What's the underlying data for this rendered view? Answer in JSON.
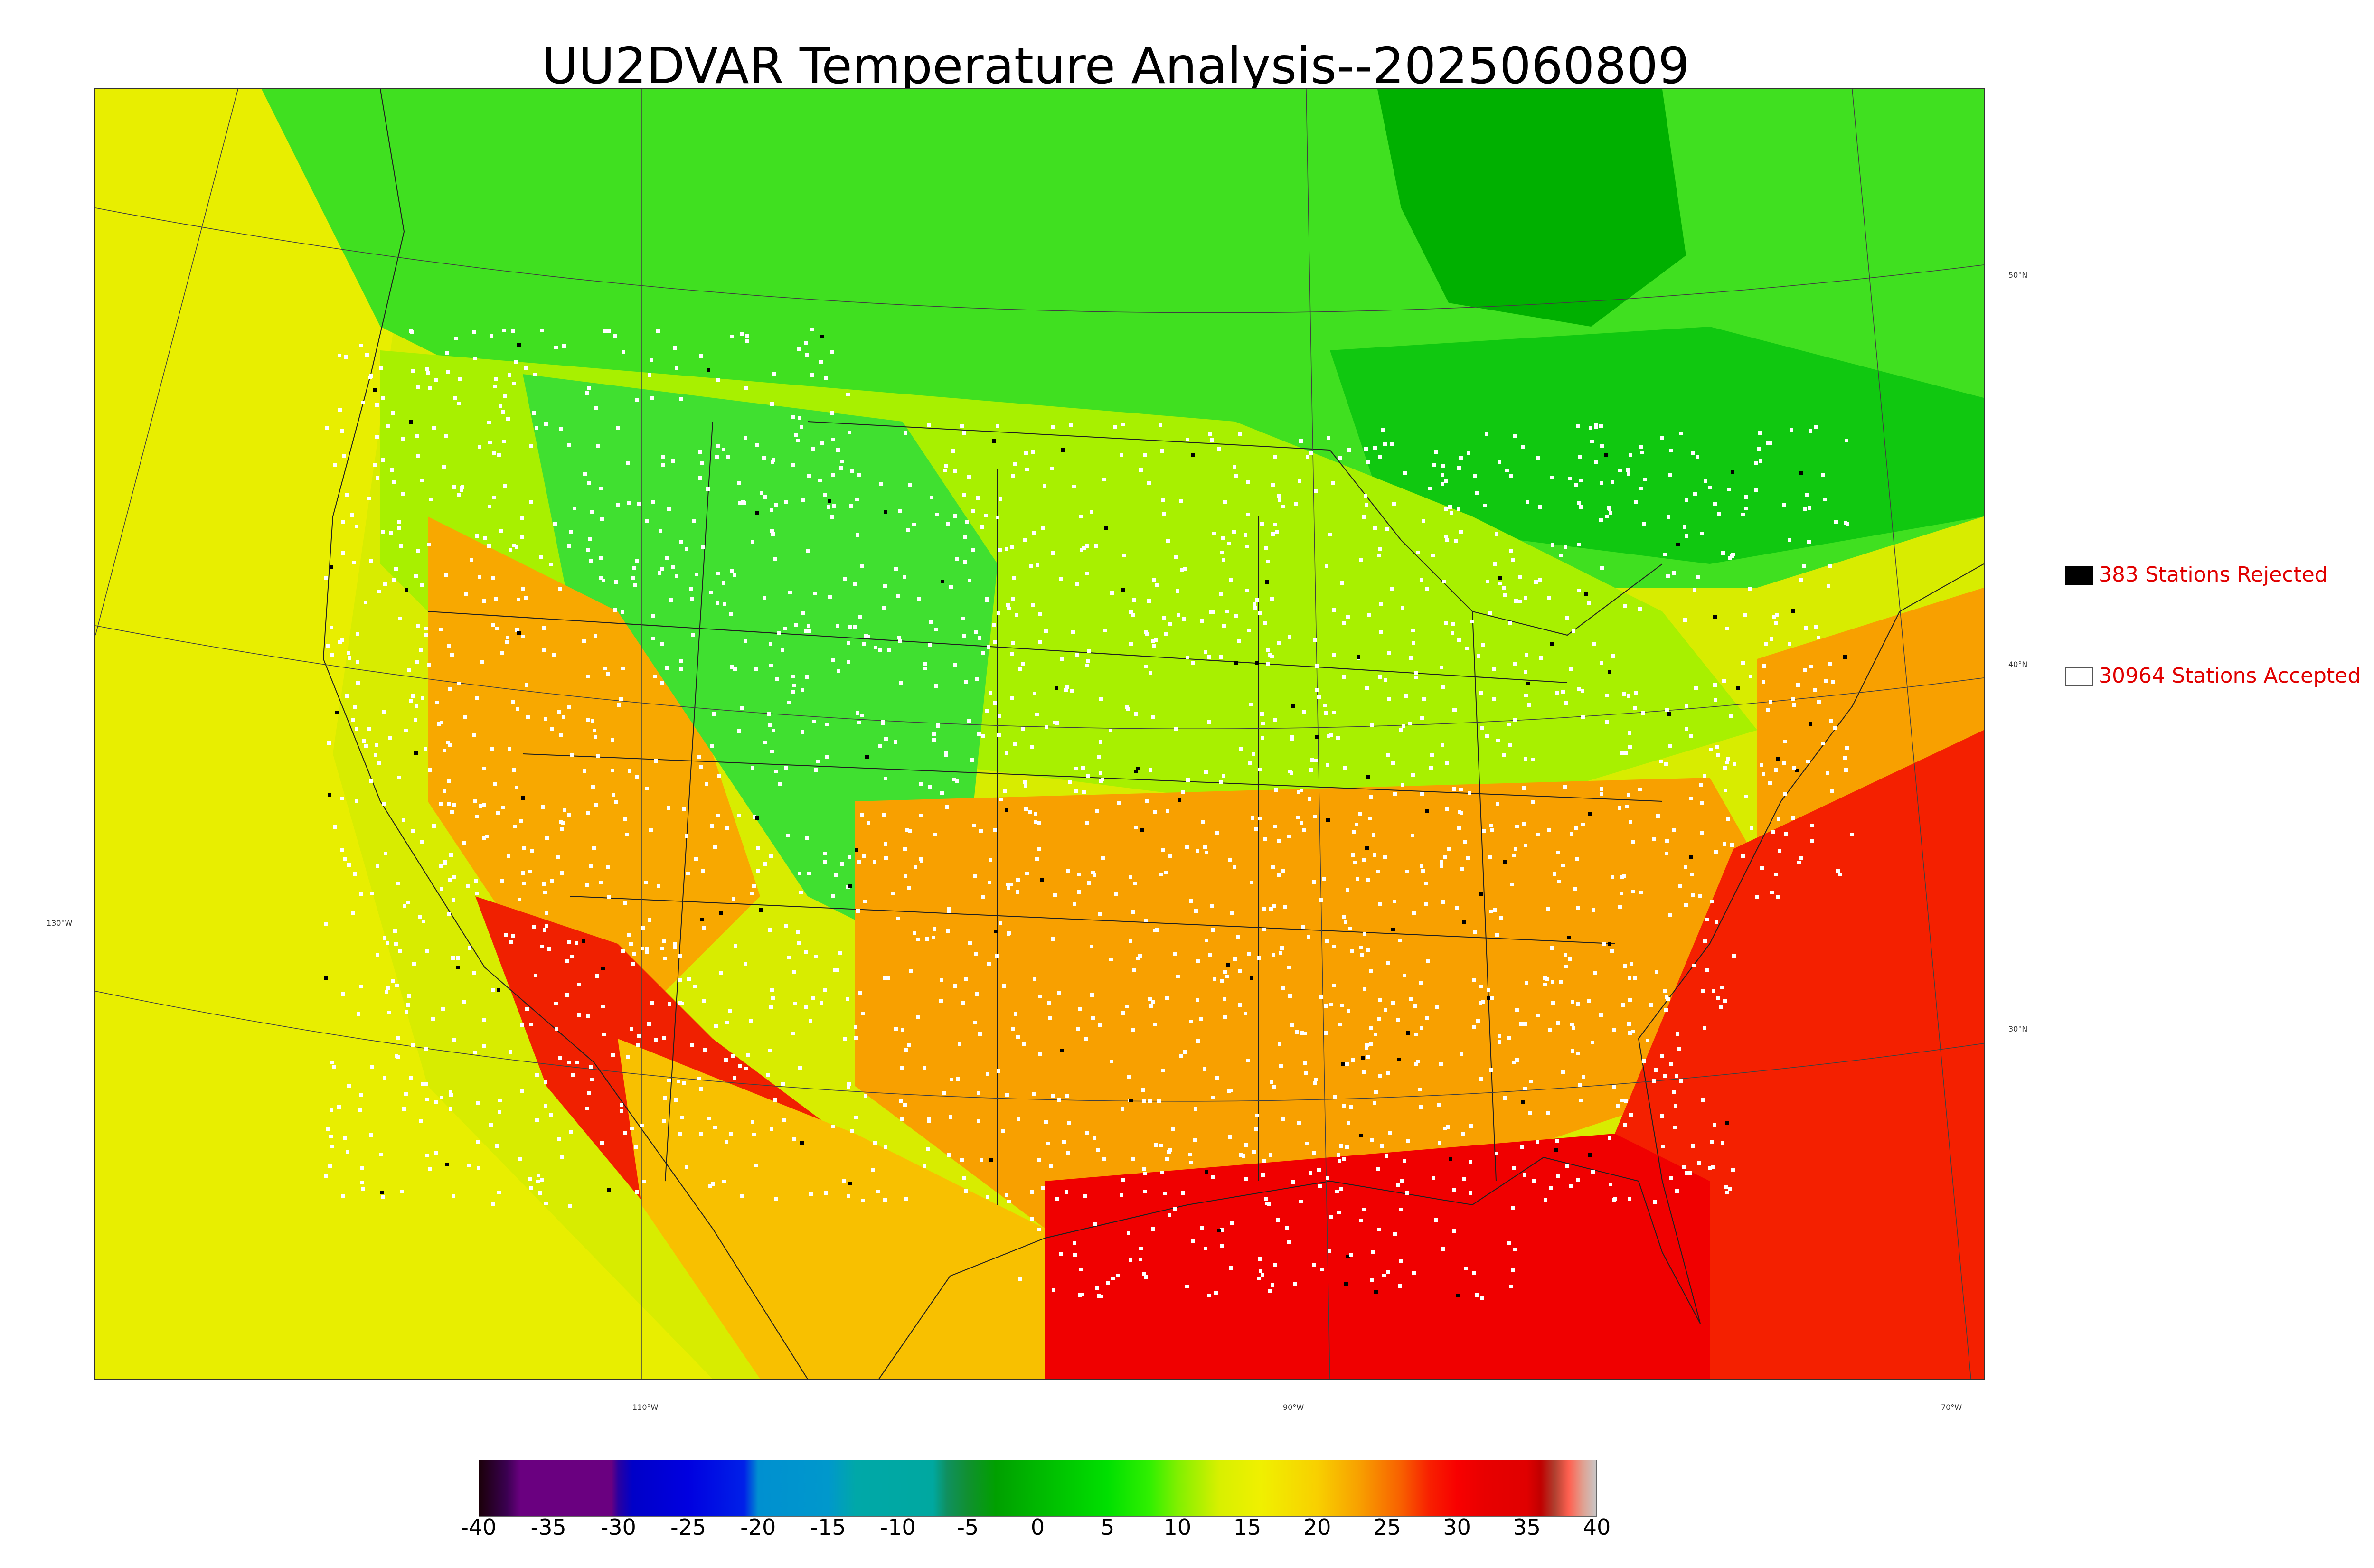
{
  "title": "UU2DVAR Temperature Analysis--2025060809",
  "legend": {
    "rejected": {
      "label": "383 Stations Rejected",
      "color": "#000000"
    },
    "accepted": {
      "label": "30964 Stations Accepted",
      "color": "#ffffff"
    }
  },
  "latitude_labels": [
    "50°N",
    "40°N",
    "30°N"
  ],
  "longitude_labels": [
    "130°W",
    "110°W",
    "90°W",
    "70°W"
  ],
  "colorbar": {
    "ticks": [
      "-40",
      "-35",
      "-30",
      "-25",
      "-20",
      "-15",
      "-10",
      "-5",
      "0",
      "5",
      "10",
      "15",
      "20",
      "25",
      "30",
      "35",
      "40"
    ],
    "range": [
      -40,
      40
    ],
    "stops": [
      {
        "v": -40,
        "c": "#1a0008"
      },
      {
        "v": -38,
        "c": "#3a0050"
      },
      {
        "v": -37,
        "c": "#6a0080"
      },
      {
        "v": -30.5,
        "c": "#6a0080"
      },
      {
        "v": -30,
        "c": "#2a00a0"
      },
      {
        "v": -29,
        "c": "#0000c8"
      },
      {
        "v": -25,
        "c": "#0000e0"
      },
      {
        "v": -21,
        "c": "#0020e8"
      },
      {
        "v": -20,
        "c": "#0090d0"
      },
      {
        "v": -15,
        "c": "#0098cc"
      },
      {
        "v": -13,
        "c": "#00a8a8"
      },
      {
        "v": -7.5,
        "c": "#00a8a0"
      },
      {
        "v": -6.5,
        "c": "#109060"
      },
      {
        "v": -5,
        "c": "#109030"
      },
      {
        "v": -3,
        "c": "#00a000"
      },
      {
        "v": 0,
        "c": "#00b800"
      },
      {
        "v": 5,
        "c": "#00e000"
      },
      {
        "v": 8,
        "c": "#30f000"
      },
      {
        "v": 10,
        "c": "#80f000"
      },
      {
        "v": 13,
        "c": "#d8f000"
      },
      {
        "v": 16,
        "c": "#f0f000"
      },
      {
        "v": 20,
        "c": "#f8d000"
      },
      {
        "v": 23,
        "c": "#f8a000"
      },
      {
        "v": 26,
        "c": "#f86000"
      },
      {
        "v": 28,
        "c": "#f82000"
      },
      {
        "v": 30,
        "c": "#f80000"
      },
      {
        "v": 32,
        "c": "#e80000"
      },
      {
        "v": 35,
        "c": "#e00000"
      },
      {
        "v": 36,
        "c": "#c00000"
      },
      {
        "v": 37,
        "c": "#b04030"
      },
      {
        "v": 38,
        "c": "#ff6050"
      },
      {
        "v": 39,
        "c": "#e0a090"
      },
      {
        "v": 40,
        "c": "#c8c8c8"
      }
    ]
  },
  "colors": {
    "cold_canada": "#00b000",
    "cool_green": "#20e020",
    "mild_yellow": "#e0f000",
    "warm_orange": "#f8a000",
    "hot_red": "#f00000",
    "station_accepted": "#ffffff",
    "station_rejected": "#000000"
  }
}
